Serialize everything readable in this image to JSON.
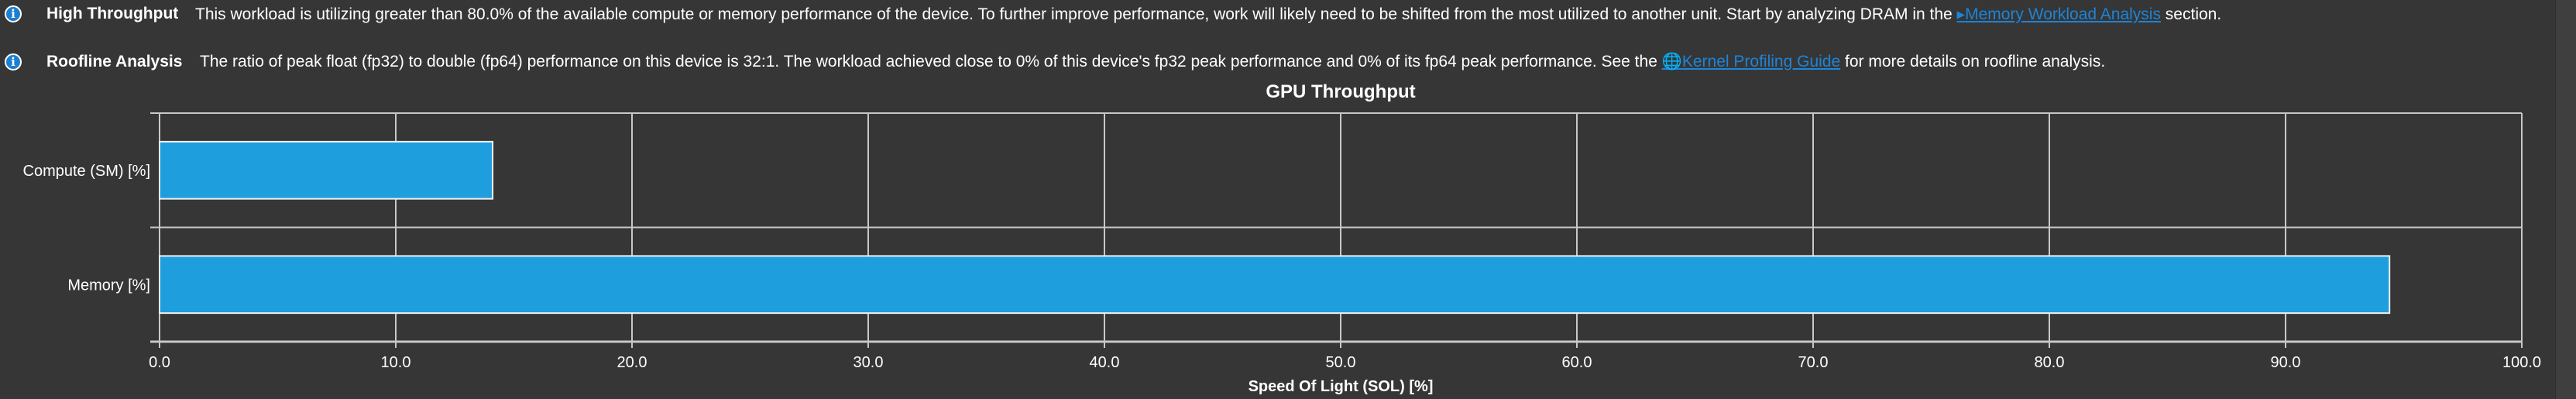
{
  "messages": [
    {
      "icon": "info-icon",
      "title": "High Throughput",
      "text_before": "This workload is utilizing greater than 80.0% of the available compute or memory performance of the device. To further improve performance, work will likely need to be shifted from the most utilized to another unit. Start by analyzing DRAM in the ",
      "link_icon": "play-arrow-icon",
      "link": "Memory Workload Analysis",
      "text_after": " section."
    },
    {
      "icon": "info-icon",
      "title": "Roofline Analysis",
      "text_before": "The ratio of peak float (fp32) to double (fp64) performance on this device is 32:1. The workload achieved close to 0% of this device's fp32 peak performance and 0% of its fp64 peak performance. See the ",
      "link_icon": "globe-icon",
      "link": "Kernel Profiling Guide",
      "text_after": " for more details on roofline analysis."
    }
  ],
  "chart_data": {
    "type": "bar",
    "orientation": "horizontal",
    "title": "GPU Throughput",
    "categories": [
      "Compute (SM) [%]",
      "Memory [%]"
    ],
    "values": [
      14.1,
      94.4
    ],
    "xlabel": "Speed Of Light (SOL) [%]",
    "ylabel": "",
    "xlim": [
      0,
      100
    ],
    "xticks": [
      "0.0",
      "10.0",
      "20.0",
      "30.0",
      "40.0",
      "50.0",
      "60.0",
      "70.0",
      "80.0",
      "90.0",
      "100.0"
    ],
    "grid": true,
    "bar_color": "#1f9ede"
  }
}
